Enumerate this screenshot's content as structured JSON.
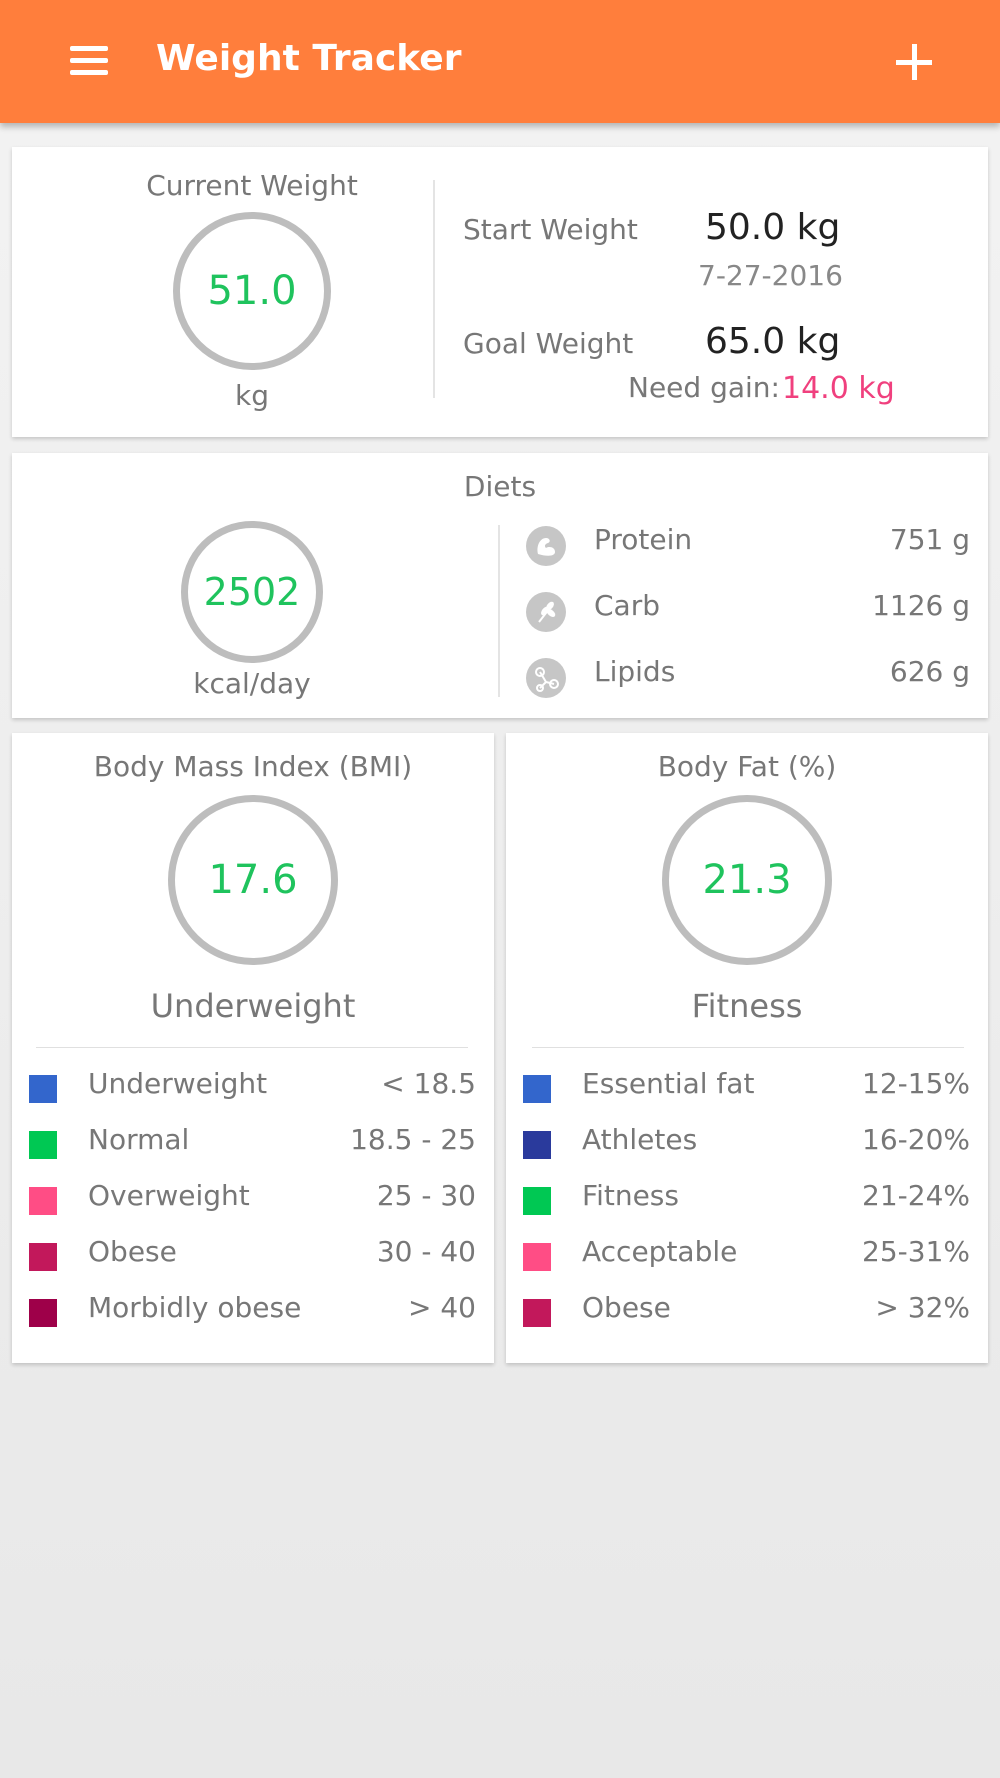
{
  "appbar": {
    "title": "Weight Tracker",
    "menu_icon": "hamburger-menu-icon",
    "add_icon": "plus-icon"
  },
  "weight": {
    "current_label": "Current Weight",
    "current_value": "51.0",
    "unit": "kg",
    "start_label": "Start Weight",
    "start_value": "50.0 kg",
    "start_date": "7-27-2016",
    "goal_label": "Goal Weight",
    "goal_value": "65.0 kg",
    "need_label": "Need gain:",
    "need_value": "14.0 kg"
  },
  "diets": {
    "title": "Diets",
    "kcal_value": "2502",
    "kcal_unit": "kcal/day",
    "items": [
      {
        "label": "Protein",
        "value": "751 g",
        "icon": "muscle-icon"
      },
      {
        "label": "Carb",
        "value": "1126 g",
        "icon": "grain-icon"
      },
      {
        "label": "Lipids",
        "value": "626 g",
        "icon": "molecule-icon"
      }
    ]
  },
  "bmi": {
    "title": "Body Mass Index (BMI)",
    "value": "17.6",
    "status": "Underweight",
    "legend": [
      {
        "label": "Underweight",
        "range": "< 18.5",
        "color": "#3366cc"
      },
      {
        "label": "Normal",
        "range": "18.5 - 25",
        "color": "#00c853"
      },
      {
        "label": "Overweight",
        "range": "25 - 30",
        "color": "#ff4d85"
      },
      {
        "label": "Obese",
        "range": "30 - 40",
        "color": "#c2185b"
      },
      {
        "label": "Morbidly obese",
        "range": "> 40",
        "color": "#9e0049"
      }
    ]
  },
  "bodyfat": {
    "title": "Body Fat (%)",
    "value": "21.3",
    "status": "Fitness",
    "legend": [
      {
        "label": "Essential fat",
        "range": "12-15%",
        "color": "#3366cc"
      },
      {
        "label": "Athletes",
        "range": "16-20%",
        "color": "#2a3a9c"
      },
      {
        "label": "Fitness",
        "range": "21-24%",
        "color": "#00c853"
      },
      {
        "label": "Acceptable",
        "range": "25-31%",
        "color": "#ff4d85"
      },
      {
        "label": "Obese",
        "range": "> 32%",
        "color": "#c2185b"
      }
    ]
  },
  "colors": {
    "accent": "#ff7e3c",
    "value_green": "#1fc35d",
    "need_pink": "#f0407e"
  }
}
